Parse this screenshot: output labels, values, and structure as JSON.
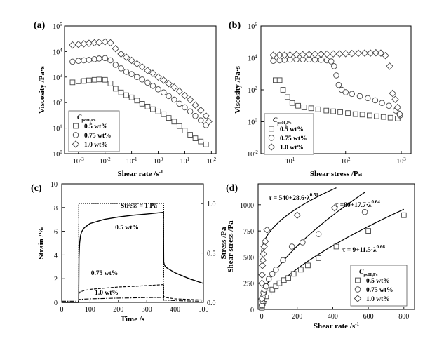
{
  "chart_data": [
    {
      "panel": "(a)",
      "type": "scatter",
      "xlabel": "Shear rate /s",
      "xlabel_sup": "-1",
      "ylabel": "Viscosity /Pa·s",
      "xscale": "log",
      "yscale": "log",
      "xlim": [
        0.0003,
        150
      ],
      "ylim": [
        1,
        100000
      ],
      "xticks": [
        [
          "10",
          "-3",
          0.001
        ],
        [
          "10",
          "-2",
          0.01
        ],
        [
          "10",
          "-1",
          0.1
        ],
        [
          "10",
          "0",
          1
        ],
        [
          "10",
          "1",
          10
        ],
        [
          "10",
          "2",
          100
        ]
      ],
      "yticks": [
        [
          "10",
          "0",
          1
        ],
        [
          "10",
          "1",
          10
        ],
        [
          "10",
          "2",
          100
        ],
        [
          "10",
          "3",
          1000
        ],
        [
          "10",
          "4",
          10000
        ],
        [
          "10",
          "5",
          100000
        ]
      ],
      "legend": {
        "title": "C",
        "title_sub": "pcH₂Ps",
        "position": "bottom-left"
      },
      "series": [
        {
          "name": "0.5 wt%",
          "marker": "square",
          "x": [
            0.0006,
            0.001,
            0.0016,
            0.0025,
            0.004,
            0.006,
            0.01,
            0.016,
            0.025,
            0.04,
            0.063,
            0.1,
            0.16,
            0.25,
            0.4,
            0.63,
            1,
            1.6,
            2.5,
            4,
            6.3,
            10,
            16,
            25,
            40,
            63
          ],
          "y": [
            620,
            680,
            700,
            740,
            780,
            800,
            780,
            560,
            350,
            250,
            195,
            160,
            120,
            90,
            70,
            55,
            45,
            35,
            25,
            18,
            12,
            8,
            5.5,
            4,
            3,
            2.3
          ]
        },
        {
          "name": "0.75 wt%",
          "marker": "circle",
          "x": [
            0.0006,
            0.001,
            0.0016,
            0.0025,
            0.004,
            0.006,
            0.01,
            0.016,
            0.025,
            0.04,
            0.063,
            0.1,
            0.16,
            0.25,
            0.4,
            0.63,
            1,
            1.6,
            2.5,
            4,
            6.3,
            10,
            16,
            25,
            40,
            63
          ],
          "y": [
            4000,
            4300,
            4500,
            4700,
            5000,
            5300,
            5500,
            4500,
            3000,
            2200,
            1600,
            1300,
            1000,
            800,
            600,
            450,
            330,
            250,
            180,
            130,
            90,
            65,
            45,
            30,
            20,
            13
          ]
        },
        {
          "name": "1.0 wt%",
          "marker": "diamond",
          "x": [
            0.0006,
            0.001,
            0.0016,
            0.0025,
            0.004,
            0.006,
            0.01,
            0.016,
            0.025,
            0.04,
            0.063,
            0.1,
            0.16,
            0.25,
            0.4,
            0.63,
            1,
            1.6,
            2.5,
            4,
            6.3,
            10,
            16,
            25,
            40,
            63,
            80
          ],
          "y": [
            18000,
            19000,
            20000,
            21000,
            22000,
            23000,
            24000,
            22000,
            13000,
            8000,
            6000,
            4500,
            3300,
            2500,
            1800,
            1400,
            1000,
            750,
            550,
            400,
            280,
            190,
            130,
            80,
            50,
            30,
            18
          ]
        }
      ]
    },
    {
      "panel": "(b)",
      "type": "scatter",
      "xlabel": "Shear stress /Pa",
      "ylabel": "Viscosity /Pa·s",
      "xscale": "log",
      "yscale": "log",
      "xlim": [
        3,
        1500
      ],
      "ylim": [
        0.01,
        1000000
      ],
      "xticks": [
        [
          "10",
          "1",
          10
        ],
        [
          "10",
          "2",
          100
        ],
        [
          "10",
          "3",
          1000
        ]
      ],
      "yticks": [
        [
          "10",
          "-2",
          0.01
        ],
        [
          "10",
          "0",
          1
        ],
        [
          "10",
          "2",
          100
        ],
        [
          "10",
          "4",
          10000
        ],
        [
          "10",
          "6",
          1000000
        ]
      ],
      "legend": {
        "title": "C",
        "title_sub": "pcH₂Ps",
        "position": "bottom-left"
      },
      "series": [
        {
          "name": "0.5 wt%",
          "marker": "square",
          "x": [
            5.5,
            6.5,
            7.5,
            9,
            11,
            14,
            18,
            24,
            32,
            45,
            60,
            80,
            110,
            150,
            200,
            270,
            360,
            480,
            640,
            860
          ],
          "y": [
            400,
            400,
            100,
            35,
            15,
            10,
            8,
            7,
            6,
            5,
            4.5,
            4,
            3.5,
            3,
            2.8,
            2.5,
            2.2,
            2,
            1.8,
            1.6
          ]
        },
        {
          "name": "0.75 wt%",
          "marker": "circle",
          "x": [
            5,
            6.5,
            8,
            10,
            13,
            17,
            22,
            28,
            36,
            46,
            55,
            62,
            68,
            75,
            85,
            100,
            130,
            180,
            250,
            340,
            450,
            600,
            800,
            950
          ],
          "y": [
            6500,
            7000,
            7500,
            7800,
            8000,
            8000,
            8000,
            7800,
            7500,
            7000,
            6000,
            3000,
            800,
            200,
            100,
            70,
            55,
            40,
            30,
            22,
            15,
            10,
            5,
            2.5
          ]
        },
        {
          "name": "1.0 wt%",
          "marker": "diamond",
          "x": [
            5,
            6.5,
            8,
            10,
            13,
            17,
            22,
            28,
            36,
            46,
            60,
            78,
            100,
            130,
            170,
            220,
            280,
            350,
            430,
            520,
            620,
            700,
            780,
            860,
            940
          ],
          "y": [
            15000,
            15000,
            15000,
            15500,
            16000,
            16000,
            16500,
            17000,
            17000,
            17500,
            18000,
            18000,
            18500,
            19000,
            19500,
            20000,
            20000,
            21000,
            20000,
            14000,
            3000,
            60,
            25,
            8,
            3
          ]
        }
      ]
    },
    {
      "panel": "(c)",
      "type": "line",
      "xlabel": "Time /s",
      "ylabel": "Strain /%",
      "y2label": "Stress /Pa",
      "xlim": [
        0,
        500
      ],
      "ylim": [
        0,
        10
      ],
      "y2lim": [
        0,
        1.2
      ],
      "xticks": [
        0,
        100,
        200,
        300,
        400,
        500
      ],
      "yticks": [
        0,
        2,
        4,
        6,
        8,
        10
      ],
      "y2ticks": [
        0.0,
        0.5,
        1.0
      ],
      "y2ticklabels": [
        "0.0",
        "0.5",
        "1.0"
      ],
      "annotations": [
        "Stress = 1 Pa",
        "0.5 wt%",
        "0.75 wt%",
        "1.0 wt%"
      ],
      "series": [
        {
          "name": "0.5 wt%",
          "style": "solid",
          "x": [
            0,
            60,
            61,
            63,
            66,
            70,
            80,
            100,
            150,
            200,
            250,
            300,
            359,
            360,
            362,
            366,
            375,
            400,
            450,
            500
          ],
          "y": [
            0,
            0,
            3.8,
            5.0,
            5.6,
            5.95,
            6.3,
            6.65,
            7.0,
            7.2,
            7.35,
            7.45,
            7.6,
            3.4,
            3.2,
            3.0,
            2.85,
            2.5,
            2.0,
            1.6
          ]
        },
        {
          "name": "0.75 wt%",
          "style": "dashed",
          "x": [
            0,
            60,
            61,
            65,
            80,
            100,
            150,
            200,
            250,
            300,
            359,
            360,
            370,
            400,
            450,
            500
          ],
          "y": [
            0,
            0,
            0.75,
            0.9,
            1.0,
            1.1,
            1.2,
            1.3,
            1.35,
            1.42,
            1.5,
            0.5,
            0.4,
            0.3,
            0.25,
            0.2
          ]
        },
        {
          "name": "1.0 wt%",
          "style": "dash-dot",
          "x": [
            0,
            60,
            61,
            100,
            150,
            200,
            250,
            300,
            359,
            360,
            400,
            450,
            500
          ],
          "y": [
            0.1,
            0.1,
            0.25,
            0.3,
            0.33,
            0.36,
            0.38,
            0.4,
            0.42,
            0.2,
            0.15,
            0.12,
            0.1
          ]
        },
        {
          "name": "Stress",
          "style": "dotted",
          "axis": "y2",
          "x": [
            0,
            60,
            60,
            360,
            360,
            500
          ],
          "y": [
            0,
            0,
            1.0,
            1.0,
            0,
            0
          ]
        }
      ]
    },
    {
      "panel": "(d)",
      "type": "scatter",
      "xlabel": "Shear rate /s",
      "xlabel_sup": "-1",
      "ylabel": "Shear stress /Pa",
      "xlim": [
        -20,
        860
      ],
      "ylim": [
        0,
        1200
      ],
      "xticks": [
        0,
        200,
        400,
        600,
        800
      ],
      "yticks": [
        0,
        250,
        500,
        750,
        1000
      ],
      "legend": {
        "title": "C",
        "title_sub": "pcH₂Ps",
        "position": "bottom-right"
      },
      "fits": [
        {
          "label_base": "τ = 540+28.6·λ",
          "label_exp": "0.51",
          "a": 540,
          "b": 28.6,
          "n": 0.51,
          "xmax": 420
        },
        {
          "label_base": "τ =80+17.7·λ",
          "label_exp": "0.64",
          "a": 80,
          "b": 17.7,
          "n": 0.64,
          "xmax": 580
        },
        {
          "label_base": "τ = 9+11.5·λ",
          "label_exp": "0.66",
          "a": 9,
          "b": 11.5,
          "n": 0.66,
          "xmax": 800
        }
      ],
      "series": [
        {
          "name": "0.5 wt%",
          "marker": "square",
          "x": [
            1,
            3,
            6,
            10,
            16,
            25,
            40,
            60,
            80,
            100,
            125,
            150,
            180,
            220,
            260,
            320,
            420,
            600,
            800
          ],
          "y": [
            15,
            35,
            60,
            80,
            100,
            125,
            160,
            190,
            220,
            250,
            280,
            300,
            340,
            380,
            420,
            490,
            600,
            750,
            900
          ]
        },
        {
          "name": "0.75 wt%",
          "marker": "circle",
          "x": [
            1,
            3,
            6,
            10,
            16,
            25,
            40,
            60,
            80,
            120,
            170,
            230,
            320,
            580
          ],
          "y": [
            40,
            80,
            120,
            160,
            190,
            220,
            290,
            340,
            380,
            470,
            600,
            640,
            720,
            930
          ]
        },
        {
          "name": "1.0 wt%",
          "marker": "diamond",
          "x": [
            0.5,
            1,
            2,
            4,
            7,
            10,
            14,
            20,
            30,
            200,
            410
          ],
          "y": [
            100,
            250,
            330,
            420,
            470,
            530,
            600,
            650,
            760,
            900,
            970
          ]
        }
      ]
    }
  ]
}
